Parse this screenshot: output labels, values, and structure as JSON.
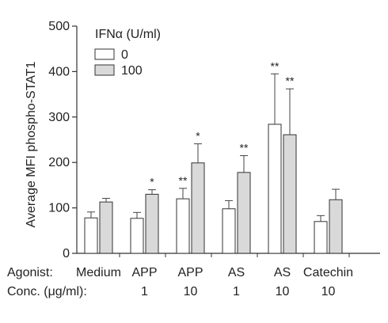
{
  "chart_data": {
    "type": "bar",
    "ylabel": "Average MFI phospho-STAT1",
    "ylim": [
      0,
      500
    ],
    "yticks": [
      0,
      100,
      200,
      300,
      400,
      500
    ],
    "legend": {
      "title": "IFNα (U/ml)",
      "placement": "top-left"
    },
    "row_labels": {
      "agonist": "Agonist:",
      "conc": "Conc. (μg/ml):"
    },
    "categories": [
      {
        "agonist": "Medium",
        "conc": ""
      },
      {
        "agonist": "APP",
        "conc": "1"
      },
      {
        "agonist": "APP",
        "conc": "10"
      },
      {
        "agonist": "AS",
        "conc": "1"
      },
      {
        "agonist": "AS",
        "conc": "10"
      },
      {
        "agonist": "Catechin",
        "conc": "10"
      }
    ],
    "series": [
      {
        "name": "0",
        "color": "#ffffff",
        "values": [
          78,
          77,
          120,
          98,
          284,
          70
        ],
        "errors": [
          13,
          13,
          23,
          18,
          111,
          13
        ],
        "sig": [
          "",
          "",
          "**",
          "",
          "**",
          ""
        ]
      },
      {
        "name": "100",
        "color": "#d9d9d9",
        "values": [
          113,
          130,
          199,
          178,
          261,
          118
        ],
        "errors": [
          8,
          10,
          42,
          37,
          101,
          23
        ],
        "sig": [
          "",
          "*",
          "*",
          "**",
          "**",
          ""
        ]
      }
    ],
    "grid": false
  }
}
